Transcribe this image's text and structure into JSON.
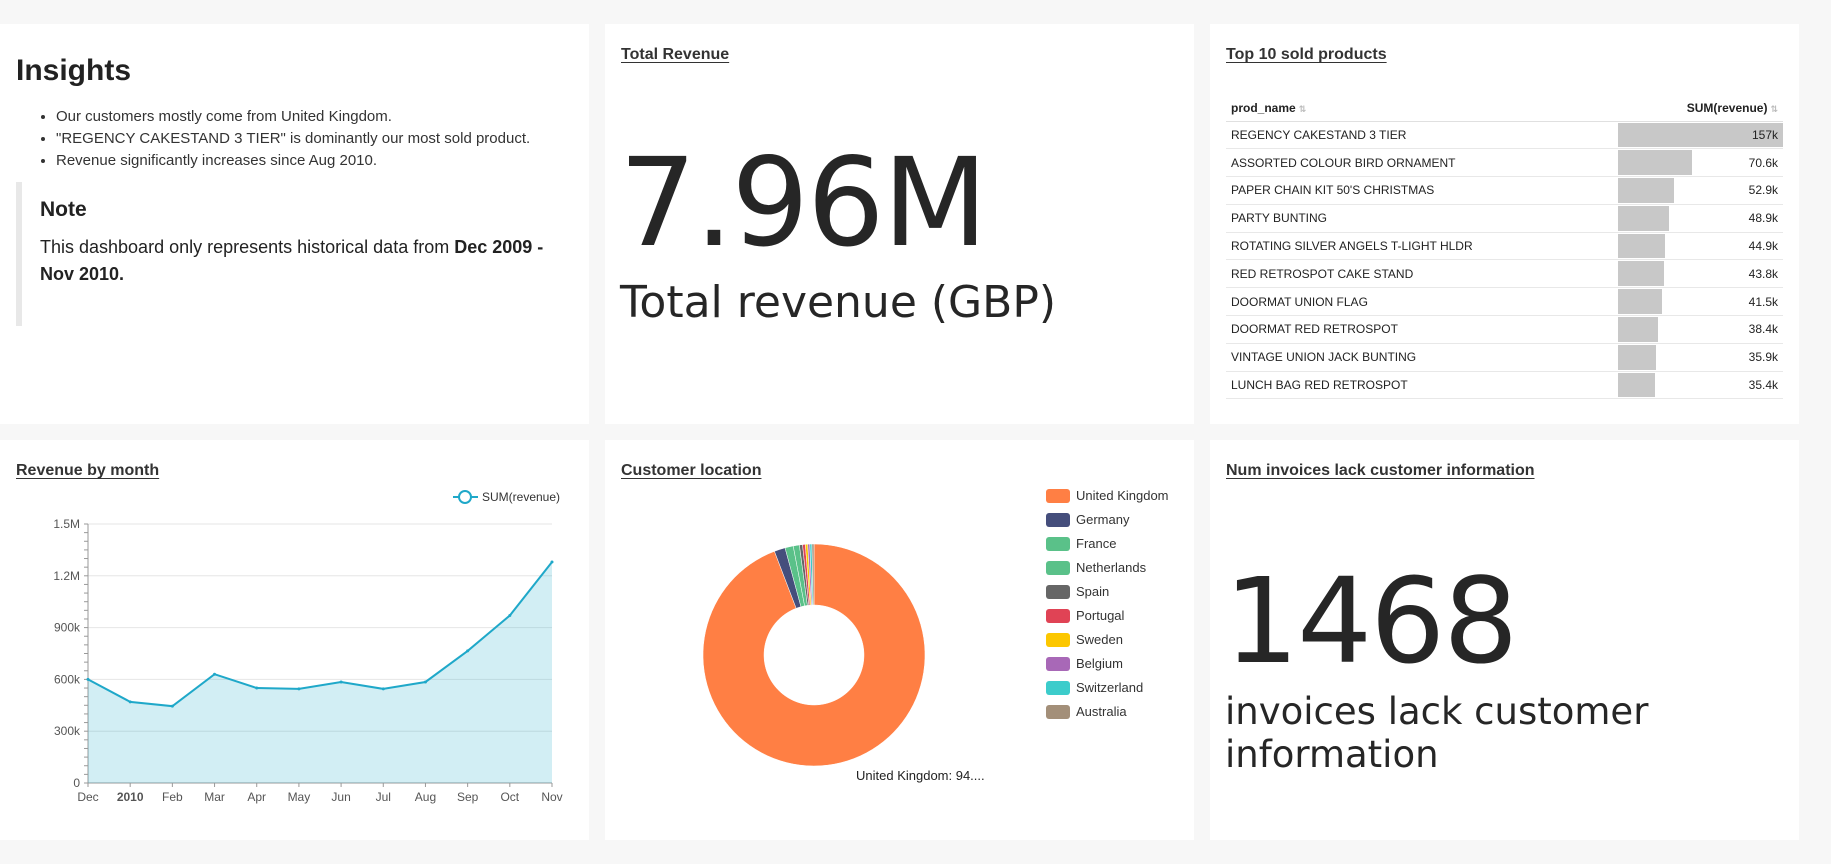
{
  "insights": {
    "title": "Insights",
    "bullets": [
      "Our customers mostly come from United Kingdom.",
      "\"REGENCY CAKESTAND 3 TIER\" is dominantly our most sold product.",
      "Revenue significantly increases since Aug 2010."
    ],
    "note_title": "Note",
    "note_text": "This dashboard only represents historical data from ",
    "note_bold": "Dec 2009 - Nov 2010."
  },
  "total_revenue": {
    "title": "Total Revenue",
    "value": "7.96M",
    "subtitle": "Total revenue (GBP)"
  },
  "top10": {
    "title": "Top 10 sold products",
    "col_name": "prod_name",
    "col_value": "SUM(revenue)",
    "rows": [
      {
        "name": "REGENCY CAKESTAND 3 TIER",
        "value": "157k",
        "num": 157
      },
      {
        "name": "ASSORTED COLOUR BIRD ORNAMENT",
        "value": "70.6k",
        "num": 70.6
      },
      {
        "name": "PAPER CHAIN KIT 50'S CHRISTMAS",
        "value": "52.9k",
        "num": 52.9
      },
      {
        "name": "PARTY BUNTING",
        "value": "48.9k",
        "num": 48.9
      },
      {
        "name": "ROTATING SILVER ANGELS T-LIGHT HLDR",
        "value": "44.9k",
        "num": 44.9
      },
      {
        "name": "RED RETROSPOT CAKE STAND",
        "value": "43.8k",
        "num": 43.8
      },
      {
        "name": "DOORMAT UNION FLAG",
        "value": "41.5k",
        "num": 41.5
      },
      {
        "name": "DOORMAT RED RETROSPOT",
        "value": "38.4k",
        "num": 38.4
      },
      {
        "name": "VINTAGE UNION JACK BUNTING",
        "value": "35.9k",
        "num": 35.9
      },
      {
        "name": "LUNCH BAG RED RETROSPOT",
        "value": "35.4k",
        "num": 35.4
      }
    ]
  },
  "revenue_by_month": {
    "title": "Revenue by month",
    "legend": "SUM(revenue)",
    "color": "#1fa8c9"
  },
  "customer_location": {
    "title": "Customer location",
    "tooltip": "United Kingdom: 94...."
  },
  "num_invoices": {
    "title": "Num invoices lack customer information",
    "value": "1468",
    "subtitle": "invoices lack customer information"
  },
  "chart_data": [
    {
      "type": "area",
      "title": "Revenue by month",
      "x": [
        "Dec",
        "2010",
        "Feb",
        "Mar",
        "Apr",
        "May",
        "Jun",
        "Jul",
        "Aug",
        "Sep",
        "Oct",
        "Nov"
      ],
      "series": [
        {
          "name": "SUM(revenue)",
          "values": [
            600000,
            470000,
            445000,
            630000,
            550000,
            545000,
            585000,
            545000,
            585000,
            765000,
            970000,
            1280000
          ]
        }
      ],
      "yticks": [
        "0",
        "300k",
        "600k",
        "900k",
        "1.2M",
        "1.5M"
      ],
      "ylim": [
        0,
        1500000
      ],
      "legend_position": "top-right",
      "grid": true
    },
    {
      "type": "pie",
      "title": "Customer location",
      "donut": true,
      "categories": [
        "United Kingdom",
        "Germany",
        "France",
        "Netherlands",
        "Spain",
        "Portugal",
        "Sweden",
        "Belgium",
        "Switzerland",
        "Australia"
      ],
      "values": [
        94.2,
        1.6,
        1.2,
        0.9,
        0.45,
        0.4,
        0.35,
        0.3,
        0.3,
        0.3
      ],
      "colors": [
        "#ff7f44",
        "#454e7c",
        "#5ac189",
        "#5ac189",
        "#666666",
        "#e04355",
        "#fcc700",
        "#a868b7",
        "#3ccccb",
        "#a38f79"
      ],
      "legend_position": "right"
    }
  ]
}
